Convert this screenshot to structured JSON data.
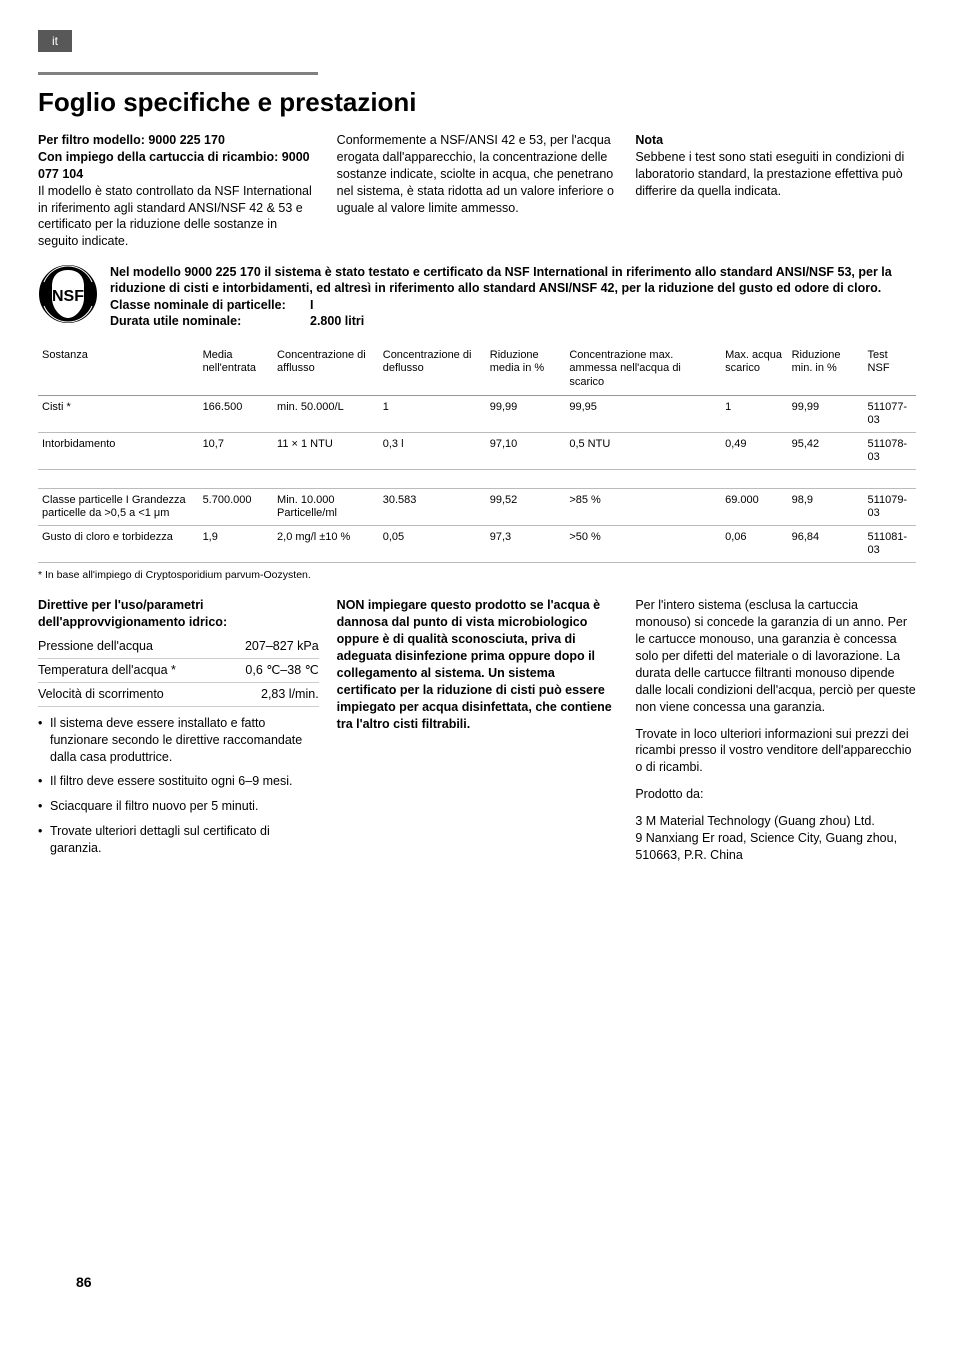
{
  "lang_tab": "it",
  "title": "Foglio specifiche e prestazioni",
  "intro": {
    "col1_line1": "Per filtro modello: 9000 225 170",
    "col1_line2": "Con impiego della cartuccia di ricambio: 9000 077 104",
    "col1_body": "Il modello è stato controllato da NSF International in riferimento agli standard ANSI/NSF 42 & 53 e certificato per la riduzione delle sostanze in seguito indicate.",
    "col2_body": "Conformemente a NSF/ANSI 42 e 53, per l'acqua erogata dall'apparecchio, la concentrazione delle sostanze indicate, sciolte in acqua, che penetrano nel sistema, è stata ridotta ad un valore inferiore o uguale al valore limite ammesso.",
    "col3_heading": "Nota",
    "col3_body": "Sebbene i test sono stati eseguiti in condizioni di laboratorio standard, la prestazione effettiva può differire da quella indicata."
  },
  "cert": {
    "bold_text": "Nel modello 9000 225 170 il sistema è stato testato e certificato da NSF International in riferimento allo standard ANSI/NSF 53, per la riduzione di cisti e intorbidamenti, ed altresì in riferimento allo standard ANSI/NSF 42, per la riduzione del gusto ed odore di cloro.",
    "class_label": "Classe nominale di particelle:",
    "class_value": "I",
    "life_label": "Durata utile nominale:",
    "life_value": "2.800 litri"
  },
  "table": {
    "headers": [
      "Sostanza",
      "Media nell'entrata",
      "Concentrazione di afflusso",
      "Concentrazione di deflusso",
      "Riduzione media in %",
      "Concentrazione max. ammessa nell'acqua di scarico",
      "Max. acqua scarico",
      "Riduzione min. in %",
      "Test NSF"
    ],
    "rows": [
      [
        "Cisti *",
        "166.500",
        "min. 50.000/L",
        "1",
        "99,99",
        "99,95",
        "1",
        "99,99",
        "511077-03"
      ],
      [
        "Intorbidamento",
        "10,7",
        "11 × 1 NTU",
        "0,3 l",
        "97,10",
        "0,5 NTU",
        "0,49",
        "95,42",
        "511078-03"
      ],
      [
        "Classe particelle I Grandezza particelle da >0,5 a <1 μm",
        "5.700.000",
        "Min. 10.000 Particelle/ml",
        "30.583",
        "99,52",
        ">85 %",
        "69.000",
        "98,9",
        "511079-03"
      ],
      [
        "Gusto di cloro e torbidezza",
        "1,9",
        "2,0 mg/l ±10 %",
        "0,05",
        "97,3",
        ">50 %",
        "0,06",
        "96,84",
        "511081-03"
      ]
    ]
  },
  "footnote": "* In base all'impiego di Cryptosporidium parvum-Oozysten.",
  "lower": {
    "col1_heading": "Direttive per l'uso/parametri dell'approvvigionamento idrico:",
    "params": [
      [
        "Pressione dell'acqua",
        "207–827 kPa"
      ],
      [
        "Temperatura dell'acqua *",
        "0,6 ℃–38 ℃"
      ],
      [
        "Velocità di scorrimento",
        "2,83 l/min."
      ]
    ],
    "bullets": [
      "Il sistema deve essere installato e fatto funzionare secondo le direttive raccomandate dalla casa produttrice.",
      "Il filtro deve essere sostituito ogni 6–9 mesi.",
      "Sciacquare il filtro nuovo per 5 minuti.",
      "Trovate ulteriori dettagli sul certificato di garanzia."
    ],
    "col2_bold": "NON impiegare questo prodotto se l'acqua è dannosa dal punto di vista microbiologico oppure è di qualità sconosciuta, priva di adeguata disinfezione prima oppure dopo il collegamento al sistema. Un sistema certificato per la riduzione di cisti può essere impiegato per acqua disinfettata, che contiene tra l'altro cisti filtrabili.",
    "col3_p1": "Per l'intero sistema (esclusa la cartuccia monouso) si concede la garanzia di un anno. Per le cartucce monouso, una garanzia è concessa solo per difetti del materiale o di lavorazione. La durata delle cartucce filtranti monouso dipende dalle locali condizioni dell'acqua, perciò per queste non viene concessa una garanzia.",
    "col3_p2": "Trovate in loco ulteriori informazioni sui prezzi dei ricambi presso il vostro venditore dell'apparecchio o di ricambi.",
    "col3_p3": "Prodotto da:",
    "col3_p4": "3 M Material Technology (Guang zhou) Ltd.",
    "col3_p5": "9 Nanxiang Er road, Science City, Guang zhou, 510663, P.R. China"
  },
  "page_number": "86"
}
